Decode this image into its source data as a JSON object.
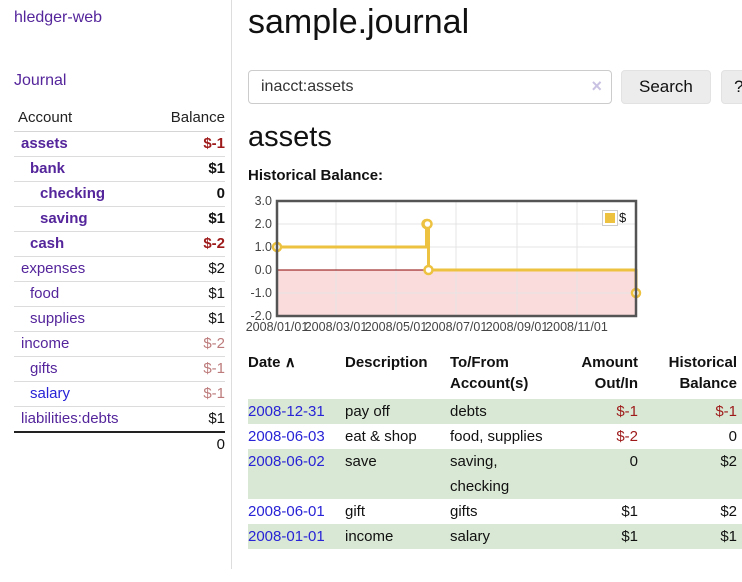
{
  "sidebar": {
    "app_title": "hledger-web",
    "nav": {
      "journal_label": "Journal"
    },
    "accounts_table": {
      "headers": {
        "account": "Account",
        "balance": "Balance"
      },
      "rows": [
        {
          "name": "assets",
          "depth": 1,
          "bold": true,
          "link_color": "purple",
          "balance": "$-1",
          "balance_class": "neg-strong"
        },
        {
          "name": "bank",
          "depth": 2,
          "bold": true,
          "link_color": "purple",
          "balance": "$1",
          "balance_class": "pos"
        },
        {
          "name": "checking",
          "depth": 3,
          "bold": true,
          "link_color": "purple",
          "balance": "0",
          "balance_class": "pos"
        },
        {
          "name": "saving",
          "depth": 3,
          "bold": true,
          "link_color": "purple",
          "balance": "$1",
          "balance_class": "pos"
        },
        {
          "name": "cash",
          "depth": 2,
          "bold": true,
          "link_color": "purple",
          "balance": "$-2",
          "balance_class": "neg-strong"
        },
        {
          "name": "expenses",
          "depth": 1,
          "bold": false,
          "link_color": "purple",
          "balance": "$2",
          "balance_class": "pos"
        },
        {
          "name": "food",
          "depth": 2,
          "bold": false,
          "link_color": "purple",
          "balance": "$1",
          "balance_class": "pos"
        },
        {
          "name": "supplies",
          "depth": 2,
          "bold": false,
          "link_color": "purple",
          "balance": "$1",
          "balance_class": "pos"
        },
        {
          "name": "income",
          "depth": 1,
          "bold": false,
          "link_color": "purple",
          "balance": "$-2",
          "balance_class": "neg-soft"
        },
        {
          "name": "gifts",
          "depth": 2,
          "bold": false,
          "link_color": "purple",
          "balance": "$-1",
          "balance_class": "neg-soft"
        },
        {
          "name": "salary",
          "depth": 2,
          "bold": false,
          "link_color": "blue",
          "balance": "$-1",
          "balance_class": "neg-soft"
        },
        {
          "name": "liabilities:debts",
          "depth": 1,
          "bold": false,
          "link_color": "purple",
          "balance": "$1",
          "balance_class": "pos"
        }
      ],
      "total": "0"
    }
  },
  "main": {
    "page_title": "sample.journal",
    "search": {
      "value": "inacct:assets",
      "clear_icon": "×",
      "search_button": "Search",
      "help_button": "?"
    },
    "account_heading": "assets",
    "chart_label": "Historical Balance:"
  },
  "chart_data": {
    "type": "line",
    "step": true,
    "title": "Historical Balance:",
    "legend": {
      "position": "top-right",
      "entries": [
        "$"
      ]
    },
    "series": [
      {
        "name": "$",
        "color": "#edc240",
        "points": [
          {
            "x": "2008-01-01",
            "y": 1
          },
          {
            "x": "2008-06-01",
            "y": 2
          },
          {
            "x": "2008-06-02",
            "y": 2
          },
          {
            "x": "2008-06-03",
            "y": 0
          },
          {
            "x": "2008-12-31",
            "y": -1
          }
        ]
      }
    ],
    "xlim": [
      "2008-01-01",
      "2008-12-31"
    ],
    "ylim": [
      -2,
      3
    ],
    "yticks": [
      {
        "value": 3,
        "label": "3.0"
      },
      {
        "value": 2,
        "label": "2.0"
      },
      {
        "value": 1,
        "label": "1.0"
      },
      {
        "value": 0,
        "label": "0.0"
      },
      {
        "value": -1,
        "label": "-1.0"
      },
      {
        "value": -2,
        "label": "-2.0"
      }
    ],
    "xticks": [
      {
        "value": "2008-01-01",
        "label": "2008/01/01"
      },
      {
        "value": "2008-03-01",
        "label": "2008/03/01"
      },
      {
        "value": "2008-05-01",
        "label": "2008/05/01"
      },
      {
        "value": "2008-07-01",
        "label": "2008/07/01"
      },
      {
        "value": "2008-09-01",
        "label": "2008/09/01"
      },
      {
        "value": "2008-11-01",
        "label": "2008/11/01"
      }
    ],
    "grid": true,
    "negative_region_color": "#fbdcdc",
    "zero_line_color": "#8b0000",
    "border_color": "#545454"
  },
  "register_table": {
    "headers": {
      "date": "Date",
      "sort_icon": "∧",
      "description": "Description",
      "tofrom": "To/From Account(s)",
      "amount": "Amount Out/In",
      "balance": "Historical Balance"
    },
    "rows": [
      {
        "date": "2008-12-31",
        "description": "pay off",
        "accounts": "debts",
        "amount": "$-1",
        "amount_neg": true,
        "balance": "$-1",
        "balance_neg": true
      },
      {
        "date": "2008-06-03",
        "description": "eat & shop",
        "accounts": "food, supplies",
        "amount": "$-2",
        "amount_neg": true,
        "balance": "0",
        "balance_neg": false
      },
      {
        "date": "2008-06-02",
        "description": "save",
        "accounts": "saving, checking",
        "amount": "0",
        "amount_neg": false,
        "balance": "$2",
        "balance_neg": false
      },
      {
        "date": "2008-06-01",
        "description": "gift",
        "accounts": "gifts",
        "amount": "$1",
        "amount_neg": false,
        "balance": "$2",
        "balance_neg": false
      },
      {
        "date": "2008-01-01",
        "description": "income",
        "accounts": "salary",
        "amount": "$1",
        "amount_neg": false,
        "balance": "$1",
        "balance_neg": false
      }
    ]
  }
}
